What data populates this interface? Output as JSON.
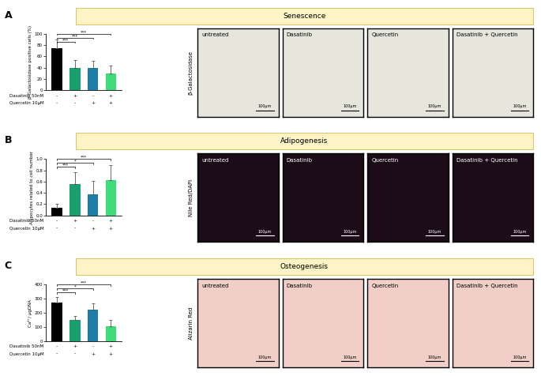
{
  "chart_data": [
    {
      "type": "bar",
      "title": "Senescence",
      "y_label": "β-Galactosidase positive cells (%)",
      "categories": [
        null,
        null,
        null,
        null
      ],
      "values": [
        75,
        40,
        39,
        30
      ],
      "errors": [
        15,
        13,
        13,
        14
      ],
      "colors": [
        "#000000",
        "#1b9e6e",
        "#1f7ea8",
        "#3fdc7c"
      ],
      "ylim": [
        0,
        100
      ],
      "yticks": [
        0,
        20,
        40,
        60,
        80,
        100
      ],
      "treatments": [
        {
          "name": "Dasatinib 50nM",
          "values": [
            "-",
            "+",
            "-",
            "+"
          ]
        },
        {
          "name": "Quercetin 10µM",
          "values": [
            "-",
            "-",
            "+",
            "+"
          ]
        }
      ],
      "significance": [
        {
          "from": 0,
          "to": 1,
          "label": "***"
        },
        {
          "from": 0,
          "to": 2,
          "label": "***"
        },
        {
          "from": 0,
          "to": 3,
          "label": "***"
        }
      ]
    },
    {
      "type": "bar",
      "title": "Adipogenesis",
      "y_label": "Adipocytes related to cell number",
      "categories": [
        null,
        null,
        null,
        null
      ],
      "values": [
        0.13,
        0.55,
        0.38,
        0.63
      ],
      "errors": [
        0.08,
        0.22,
        0.23,
        0.26
      ],
      "colors": [
        "#000000",
        "#1b9e6e",
        "#1f7ea8",
        "#3fdc7c"
      ],
      "ylim": [
        0.0,
        1.0
      ],
      "yticks": [
        0.0,
        0.2,
        0.4,
        0.6,
        0.8,
        1.0
      ],
      "treatments": [
        {
          "name": "Dasatinib 50nM",
          "values": [
            "-",
            "+",
            "-",
            "+"
          ]
        },
        {
          "name": "Quercetin 10µM",
          "values": [
            "-",
            "-",
            "+",
            "+"
          ]
        }
      ],
      "significance": [
        {
          "from": 0,
          "to": 1,
          "label": "***"
        },
        {
          "from": 0,
          "to": 2,
          "label": "*"
        },
        {
          "from": 0,
          "to": 3,
          "label": "***"
        }
      ]
    },
    {
      "type": "bar",
      "title": "Osteogenesis",
      "y_label": "Ca²⁺/ µgDNA",
      "categories": [
        null,
        null,
        null,
        null
      ],
      "values": [
        275,
        148,
        220,
        105
      ],
      "errors": [
        40,
        30,
        50,
        45
      ],
      "colors": [
        "#000000",
        "#1b9e6e",
        "#1f7ea8",
        "#3fdc7c"
      ],
      "ylim": [
        0,
        400
      ],
      "yticks": [
        0,
        100,
        200,
        300,
        400
      ],
      "treatments": [
        {
          "name": "Dasatinib 50nM",
          "values": [
            "-",
            "+",
            "-",
            "+"
          ]
        },
        {
          "name": "Quercetin 10µM",
          "values": [
            "-",
            "-",
            "+",
            "+"
          ]
        }
      ],
      "significance": [
        {
          "from": 0,
          "to": 1,
          "label": "***"
        },
        {
          "from": 0,
          "to": 2,
          "label": "*"
        },
        {
          "from": 0,
          "to": 3,
          "label": "***"
        }
      ]
    }
  ],
  "images": [
    {
      "panel": "A",
      "stain": "β-Galactosidase",
      "labels": [
        "untreated",
        "Dasatinib",
        "Quercetin",
        "Dasatinib + Quercetin"
      ],
      "scale_bar": "100µm"
    },
    {
      "panel": "B",
      "stain": "Nile Red/DAPI",
      "labels": [
        "untreated",
        "Dasatinib",
        "Quercetin",
        "Dasatinib + Quercetin"
      ],
      "scale_bar": "100µm"
    },
    {
      "panel": "C",
      "stain": "Alizarin Red",
      "labels": [
        "untreated",
        "Dasatinib",
        "Quercetin",
        "Dasatinib + Quercetin"
      ],
      "scale_bar": "100µm"
    }
  ]
}
